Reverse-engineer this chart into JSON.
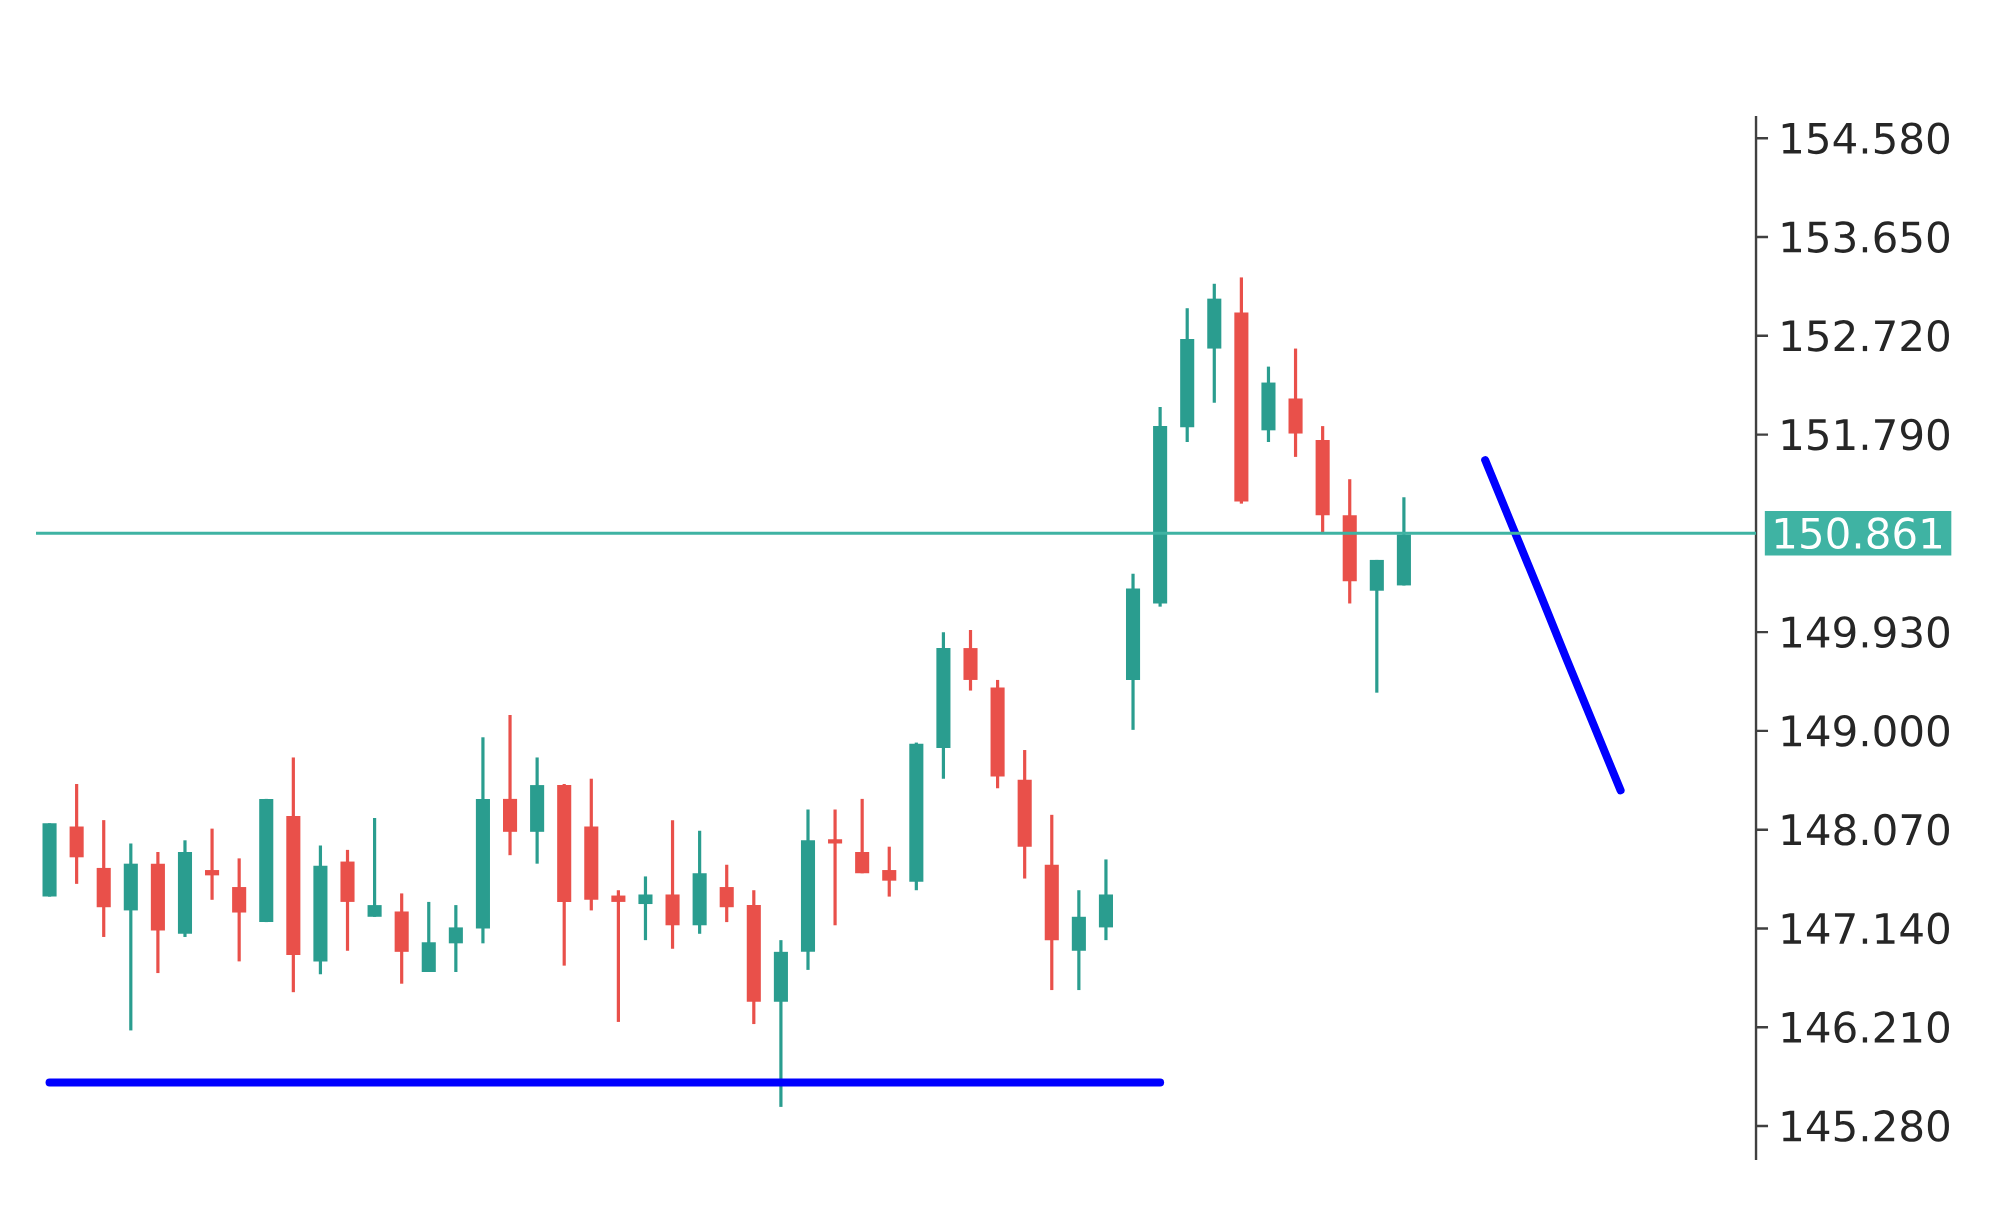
{
  "chart_data": {
    "type": "candlestick",
    "categories": [
      null,
      null,
      null,
      null,
      null,
      null,
      null,
      null,
      null,
      null,
      null,
      null,
      null,
      null,
      null,
      null,
      null,
      null,
      null,
      null,
      null,
      null,
      null,
      null,
      null,
      null,
      null,
      null,
      null,
      null,
      null,
      null,
      null,
      null,
      null,
      null,
      null,
      null,
      null,
      null,
      null,
      null,
      null,
      null,
      null,
      null,
      null,
      null,
      null,
      null,
      null,
      null,
      null,
      null,
      null,
      null,
      null,
      null,
      null
    ],
    "ohlc": [
      [
        147.44,
        148.13,
        147.44,
        148.13
      ],
      [
        148.1,
        148.5,
        147.56,
        147.81
      ],
      [
        147.71,
        148.16,
        147.06,
        147.34
      ],
      [
        147.31,
        147.94,
        146.18,
        147.75
      ],
      [
        147.75,
        147.86,
        146.72,
        147.12
      ],
      [
        147.09,
        147.97,
        147.06,
        147.86
      ],
      [
        147.69,
        148.08,
        147.41,
        147.64
      ],
      [
        147.53,
        147.8,
        146.83,
        147.29
      ],
      [
        147.2,
        148.36,
        147.2,
        148.36
      ],
      [
        148.2,
        148.75,
        146.54,
        146.89
      ],
      [
        146.83,
        147.92,
        146.71,
        147.73
      ],
      [
        147.77,
        147.88,
        146.93,
        147.39
      ],
      [
        147.25,
        148.18,
        147.25,
        147.36
      ],
      [
        147.3,
        147.47,
        146.62,
        146.92
      ],
      [
        146.73,
        147.39,
        146.73,
        147.01
      ],
      [
        147.0,
        147.36,
        146.73,
        147.15
      ],
      [
        147.14,
        148.94,
        147.0,
        148.36
      ],
      [
        148.36,
        149.15,
        147.83,
        148.05
      ],
      [
        148.05,
        148.75,
        147.75,
        148.49
      ],
      [
        148.49,
        148.5,
        146.79,
        147.39
      ],
      [
        148.1,
        148.55,
        147.31,
        147.41
      ],
      [
        147.45,
        147.5,
        146.26,
        147.39
      ],
      [
        147.37,
        147.63,
        147.03,
        147.46
      ],
      [
        147.46,
        148.16,
        146.95,
        147.17
      ],
      [
        147.17,
        148.06,
        147.09,
        147.66
      ],
      [
        147.53,
        147.74,
        147.2,
        147.34
      ],
      [
        147.36,
        147.5,
        146.24,
        146.45
      ],
      [
        146.45,
        147.03,
        145.46,
        146.92
      ],
      [
        146.92,
        148.26,
        146.75,
        147.97
      ],
      [
        147.98,
        148.26,
        147.17,
        147.94
      ],
      [
        147.86,
        148.36,
        147.66,
        147.66
      ],
      [
        147.69,
        147.91,
        147.44,
        147.59
      ],
      [
        147.58,
        148.89,
        147.5,
        148.88
      ],
      [
        148.84,
        149.93,
        148.55,
        149.78
      ],
      [
        149.78,
        149.95,
        149.38,
        149.48
      ],
      [
        149.41,
        149.48,
        148.46,
        148.57
      ],
      [
        148.54,
        148.82,
        147.61,
        147.91
      ],
      [
        147.74,
        148.21,
        146.56,
        147.03
      ],
      [
        146.93,
        147.5,
        146.56,
        147.25
      ],
      [
        147.15,
        147.79,
        147.03,
        147.46
      ],
      [
        149.48,
        150.48,
        149.01,
        150.34
      ],
      [
        150.2,
        152.05,
        150.17,
        151.87
      ],
      [
        151.86,
        152.98,
        151.72,
        152.69
      ],
      [
        152.6,
        153.21,
        152.09,
        153.07
      ],
      [
        152.94,
        153.27,
        151.14,
        151.16
      ],
      [
        151.83,
        152.43,
        151.72,
        152.28
      ],
      [
        152.13,
        152.6,
        151.58,
        151.8
      ],
      [
        151.74,
        151.87,
        150.87,
        151.03
      ],
      [
        151.03,
        151.37,
        150.2,
        150.41
      ],
      [
        150.32,
        150.61,
        149.36,
        150.61
      ],
      [
        150.37,
        151.2,
        150.37,
        150.85
      ],
      null,
      null,
      null,
      null,
      null,
      null,
      null,
      null
    ],
    "colors": [
      "#2a9d8f",
      "#e9504a",
      "#e9504a",
      "#2a9d8f",
      "#e9504a",
      "#2a9d8f",
      "#e9504a",
      "#e9504a",
      "#2a9d8f",
      "#e9504a",
      "#2a9d8f",
      "#e9504a",
      "#2a9d8f",
      "#e9504a",
      "#2a9d8f",
      "#2a9d8f",
      "#2a9d8f",
      "#e9504a",
      "#2a9d8f",
      "#e9504a",
      "#e9504a",
      "#e9504a",
      "#2a9d8f",
      "#e9504a",
      "#2a9d8f",
      "#e9504a",
      "#e9504a",
      "#2a9d8f",
      "#2a9d8f",
      "#e9504a",
      "#e9504a",
      "#e9504a",
      "#2a9d8f",
      "#2a9d8f",
      "#e9504a",
      "#e9504a",
      "#e9504a",
      "#e9504a",
      "#2a9d8f",
      "#2a9d8f",
      "#2a9d8f",
      "#2a9d8f",
      "#2a9d8f",
      "#2a9d8f",
      "#e9504a",
      "#2a9d8f",
      "#e9504a",
      "#e9504a",
      "#e9504a",
      "#2a9d8f",
      "#2a9d8f",
      null,
      null,
      null,
      null,
      null,
      null,
      null,
      null
    ],
    "ylim": [
      144.96,
      154.79
    ],
    "yticks": [
      {
        "value": 154.58,
        "label": "154.580"
      },
      {
        "value": 153.65,
        "label": "153.650"
      },
      {
        "value": 152.72,
        "label": "152.720"
      },
      {
        "value": 151.79,
        "label": "151.790"
      },
      {
        "value": 149.93,
        "label": "149.930"
      },
      {
        "value": 149.0,
        "label": "149.000"
      },
      {
        "value": 148.07,
        "label": "148.070"
      },
      {
        "value": 147.14,
        "label": "147.140"
      },
      {
        "value": 146.21,
        "label": "146.210"
      },
      {
        "value": 145.28,
        "label": "145.280"
      }
    ],
    "tick_labels": "y",
    "ref_lines": [
      {
        "axis": "y",
        "value": 150.861,
        "label": "150.861",
        "color": "#3fb3a3"
      }
    ],
    "series": [
      {
        "type": "line",
        "color": "#0000ff",
        "values": [
          145.69,
          145.69,
          145.69,
          145.69,
          145.69,
          145.69,
          145.69,
          145.69,
          145.69,
          145.69,
          145.69,
          145.69,
          145.69,
          145.69,
          145.69,
          145.69,
          145.69,
          145.69,
          145.69,
          145.69,
          145.69,
          145.69,
          145.69,
          145.69,
          145.69,
          145.69,
          145.69,
          145.69,
          145.69,
          145.69,
          145.69,
          145.69,
          145.69,
          145.69,
          145.69,
          145.69,
          145.69,
          145.69,
          145.69,
          145.69,
          145.69,
          145.69,
          null,
          null,
          null,
          null,
          null,
          null,
          null,
          null,
          null,
          null,
          null,
          null,
          null,
          null,
          null,
          null,
          null
        ]
      },
      {
        "type": "line",
        "color": "#0000ff",
        "values": [
          null,
          null,
          null,
          null,
          null,
          null,
          null,
          null,
          null,
          null,
          null,
          null,
          null,
          null,
          null,
          null,
          null,
          null,
          null,
          null,
          null,
          null,
          null,
          null,
          null,
          null,
          null,
          null,
          null,
          null,
          null,
          null,
          null,
          null,
          null,
          null,
          null,
          null,
          null,
          null,
          null,
          null,
          null,
          null,
          null,
          null,
          null,
          null,
          null,
          null,
          null,
          null,
          null,
          151.55,
          150.93,
          150.31,
          149.68,
          149.06,
          148.44
        ]
      }
    ]
  }
}
